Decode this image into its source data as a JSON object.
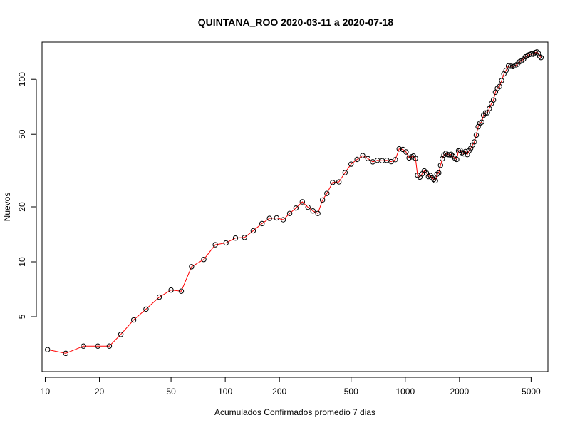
{
  "chart_data": {
    "type": "scatter",
    "title": "QUINTANA_ROO 2020-03-11 a 2020-07-18",
    "xlabel": "Acumulados Confirmados promedio  7  dias",
    "ylabel": "Nuevos",
    "x_scale": "log",
    "y_scale": "log",
    "xlim": [
      9.6,
      6200
    ],
    "ylim": [
      2.5,
      160
    ],
    "x_ticks": [
      10,
      20,
      50,
      100,
      200,
      500,
      1000,
      2000,
      5000
    ],
    "x_tick_labels": [
      "10",
      "20",
      "50",
      "100",
      "200",
      "500",
      "1000",
      "2000",
      "5000"
    ],
    "y_ticks": [
      5,
      10,
      20,
      50,
      100
    ],
    "y_tick_labels": [
      "5",
      "10",
      "20",
      "50",
      "100"
    ],
    "grid": false,
    "colors": {
      "line": "#ff0000",
      "marker_edge": "#000000",
      "axes": "#000000"
    },
    "series": [
      {
        "x": [
          10.3,
          13.0,
          16.3,
          19.6,
          22.7,
          26.3,
          31.0,
          36.3,
          43.0,
          50.0,
          57.0,
          65.0,
          76.0,
          88.0,
          101,
          114,
          128,
          143,
          160,
          176,
          193,
          210,
          228,
          247,
          268,
          288,
          307,
          327,
          347,
          367,
          395,
          428,
          463,
          500,
          540,
          580,
          620,
          660,
          700,
          745,
          790,
          835,
          880,
          925,
          970,
          1010,
          1050,
          1085,
          1110,
          1140,
          1170,
          1205,
          1240,
          1275,
          1310,
          1345,
          1380,
          1410,
          1440,
          1470,
          1500,
          1535,
          1570,
          1605,
          1640,
          1680,
          1720,
          1760,
          1800,
          1840,
          1885,
          1930,
          1975,
          2020,
          2065,
          2110,
          2160,
          2210,
          2260,
          2310,
          2365,
          2420,
          2480,
          2540,
          2600,
          2660,
          2720,
          2790,
          2860,
          2930,
          3010,
          3090,
          3170,
          3250,
          3340,
          3430,
          3530,
          3630,
          3740,
          3850,
          3970,
          4080,
          4190,
          4300,
          4420,
          4540,
          4660,
          4780,
          4900,
          5020,
          5140,
          5260,
          5380,
          5490,
          5590,
          5680
        ],
        "y": [
          3.3,
          3.15,
          3.45,
          3.45,
          3.45,
          4.0,
          4.8,
          5.5,
          6.4,
          7.0,
          6.9,
          9.4,
          10.3,
          12.4,
          12.7,
          13.5,
          13.6,
          14.8,
          16.2,
          17.3,
          17.4,
          17.0,
          18.4,
          19.7,
          21.3,
          19.9,
          19.0,
          18.4,
          21.8,
          23.7,
          27.2,
          27.4,
          30.8,
          34.3,
          36.4,
          38.2,
          36.8,
          35.3,
          36.0,
          35.8,
          36.0,
          35.4,
          36.3,
          41.6,
          41.3,
          40.0,
          37.1,
          37.6,
          38.0,
          36.9,
          29.8,
          29.1,
          30.3,
          31.5,
          30.7,
          29.3,
          29.7,
          28.8,
          28.3,
          27.8,
          30.2,
          30.7,
          33.8,
          36.7,
          38.5,
          39.3,
          38.7,
          38.6,
          38.8,
          37.9,
          37.0,
          36.4,
          40.6,
          40.9,
          39.6,
          39.1,
          40.2,
          38.7,
          40.6,
          41.9,
          43.7,
          45.4,
          49.5,
          55.0,
          57.6,
          58.3,
          63.5,
          65.4,
          65.6,
          69.1,
          73.6,
          77.0,
          85.0,
          89.2,
          91.4,
          98.4,
          107.0,
          111.9,
          118.4,
          118.0,
          117.5,
          118.6,
          121.0,
          124.5,
          126.3,
          129.0,
          133.0,
          135.5,
          136.7,
          137.9,
          137.3,
          140.1,
          141.3,
          138.5,
          133.7,
          131.6
        ]
      }
    ]
  }
}
